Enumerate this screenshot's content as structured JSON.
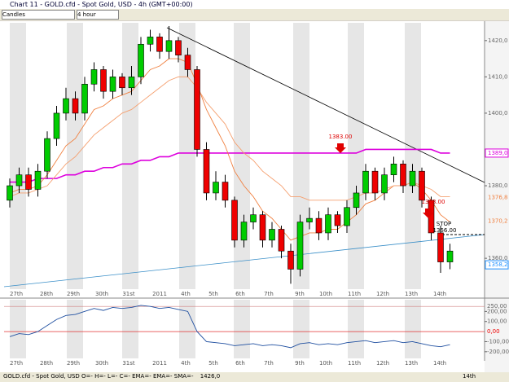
{
  "window": {
    "title": "Chart 11 - GOLD.cfd - Spot Gold, USD - 4h (GMT+00:00)"
  },
  "toolbar": {
    "chart_type": "Candles",
    "period": "4 hour"
  },
  "status_bar": {
    "text": "GOLD.cfd - Spot Gold, USD O=- H=- L=- C=- EMA=- EMA=- SMA=-",
    "value": "1426,0",
    "right": "14th"
  },
  "chart_data": {
    "type": "candlestick",
    "x_labels": [
      "27th",
      "28th",
      "29th",
      "30th",
      "31st",
      "2011",
      "4th",
      "5th",
      "6th",
      "7th",
      "9th",
      "10th",
      "11th",
      "12th",
      "13th",
      "14th"
    ],
    "open": [
      1376,
      1380,
      1383,
      1379,
      1384,
      1393,
      1400,
      1404,
      1400,
      1408,
      1412,
      1406,
      1410,
      1407,
      1410,
      1419,
      1421,
      1417,
      1420,
      1416,
      1412,
      1390,
      1378,
      1381,
      1376,
      1365,
      1370,
      1372,
      1365,
      1368,
      1362,
      1357,
      1370,
      1371,
      1367,
      1372,
      1369,
      1374,
      1378,
      1384,
      1378,
      1383,
      1386,
      1380,
      1384,
      1376,
      1367,
      1359
    ],
    "high": [
      1382,
      1385,
      1385,
      1386,
      1395,
      1402,
      1407,
      1406,
      1410,
      1414,
      1413,
      1412,
      1411,
      1413,
      1421,
      1423,
      1422,
      1424,
      1421,
      1418,
      1413,
      1392,
      1384,
      1383,
      1377,
      1372,
      1374,
      1373,
      1370,
      1369,
      1364,
      1372,
      1374,
      1373,
      1374,
      1373,
      1376,
      1380,
      1386,
      1385,
      1385,
      1388,
      1387,
      1386,
      1385,
      1377,
      1369,
      1364
    ],
    "low": [
      1374,
      1378,
      1377,
      1377,
      1382,
      1391,
      1398,
      1398,
      1398,
      1406,
      1404,
      1404,
      1405,
      1405,
      1408,
      1417,
      1415,
      1415,
      1414,
      1410,
      1388,
      1376,
      1376,
      1374,
      1363,
      1363,
      1368,
      1363,
      1363,
      1360,
      1353,
      1355,
      1368,
      1365,
      1365,
      1367,
      1367,
      1372,
      1376,
      1376,
      1376,
      1381,
      1378,
      1378,
      1374,
      1365,
      1356,
      1357
    ],
    "close": [
      1380,
      1383,
      1379,
      1384,
      1393,
      1400,
      1404,
      1400,
      1408,
      1412,
      1406,
      1410,
      1407,
      1410,
      1419,
      1421,
      1417,
      1420,
      1416,
      1412,
      1390,
      1378,
      1381,
      1376,
      1365,
      1370,
      1372,
      1365,
      1368,
      1362,
      1357,
      1370,
      1371,
      1367,
      1372,
      1369,
      1374,
      1378,
      1384,
      1378,
      1383,
      1386,
      1380,
      1384,
      1376,
      1367,
      1359,
      1362
    ],
    "up_color": "#00cc00",
    "down_color": "#ee0000",
    "series": [
      {
        "name": "SMA",
        "color": "#dd00dd",
        "values": [
          1381,
          1381,
          1381,
          1382,
          1382,
          1382,
          1383,
          1383,
          1384,
          1384,
          1385,
          1385,
          1386,
          1386,
          1387,
          1387,
          1388,
          1388,
          1389,
          1389,
          1389,
          1389,
          1389,
          1389,
          1389,
          1389,
          1389,
          1389,
          1389,
          1389,
          1389,
          1389,
          1389,
          1389,
          1389,
          1389,
          1389,
          1389,
          1390,
          1390,
          1390,
          1390,
          1390,
          1390,
          1390,
          1390,
          1389,
          1389
        ]
      },
      {
        "name": "EMA",
        "color": "#f08040",
        "values": [
          1378,
          1379,
          1379,
          1380,
          1383,
          1387,
          1391,
          1393,
          1397,
          1401,
          1402,
          1404,
          1405,
          1406,
          1409,
          1412,
          1413,
          1415,
          1415,
          1414,
          1408,
          1401,
          1396,
          1391,
          1384,
          1380,
          1377,
          1373,
          1371,
          1368,
          1365,
          1366,
          1367,
          1367,
          1368,
          1368,
          1370,
          1372,
          1375,
          1376,
          1378,
          1380,
          1380,
          1381,
          1379,
          1376,
          1372,
          1370
        ]
      },
      {
        "name": "EMA",
        "color": "#f5a070",
        "values": [
          1377,
          1378,
          1378,
          1379,
          1380,
          1383,
          1386,
          1388,
          1391,
          1394,
          1396,
          1398,
          1400,
          1401,
          1403,
          1405,
          1407,
          1409,
          1410,
          1410,
          1407,
          1403,
          1400,
          1397,
          1392,
          1389,
          1387,
          1384,
          1382,
          1380,
          1377,
          1377,
          1376,
          1376,
          1376,
          1376,
          1376,
          1377,
          1378,
          1378,
          1379,
          1380,
          1380,
          1381,
          1380,
          1379,
          1377,
          1377
        ]
      }
    ],
    "ylim": [
      1351.5,
      1424.9
    ],
    "yticks": [
      {
        "value": 1420,
        "label": "1420,0"
      },
      {
        "value": 1410,
        "label": "1410,0"
      },
      {
        "value": 1400,
        "label": "1400,0"
      },
      {
        "value": 1380,
        "label": "1380,0"
      },
      {
        "value": 1360,
        "label": "1360,0"
      }
    ],
    "price_markers": [
      {
        "value": 1389,
        "label": "1389,0",
        "color": "#dd00dd"
      },
      {
        "value": 1376.8,
        "label": "1376,8",
        "color": "#f08040"
      },
      {
        "value": 1370.2,
        "label": "1370,2",
        "color": "#f08040"
      },
      {
        "value": 1358.2,
        "label": "1358,2",
        "color": "#1e90ff"
      }
    ],
    "annotations": [
      "1383.00",
      "1368.00",
      "STOP",
      "1366.00"
    ],
    "oscillator": {
      "color": "#1f4fa0",
      "values": [
        -50,
        -20,
        -30,
        0,
        60,
        120,
        160,
        170,
        200,
        230,
        210,
        240,
        230,
        240,
        260,
        250,
        230,
        240,
        220,
        200,
        0,
        -100,
        -110,
        -120,
        -140,
        -130,
        -120,
        -140,
        -130,
        -140,
        -160,
        -120,
        -110,
        -130,
        -120,
        -130,
        -110,
        -100,
        -90,
        -110,
        -100,
        -90,
        -110,
        -100,
        -120,
        -140,
        -150,
        -130
      ],
      "ylim": [
        -250,
        300
      ],
      "yticks": [
        {
          "value": 250,
          "label": "250,00"
        },
        {
          "value": 200,
          "label": "200,00"
        },
        {
          "value": 100,
          "label": "100,00"
        },
        {
          "value": 0,
          "label": "0,00"
        },
        {
          "value": -100,
          "label": "-100,00"
        },
        {
          "value": -200,
          "label": "-200,00"
        }
      ]
    }
  }
}
